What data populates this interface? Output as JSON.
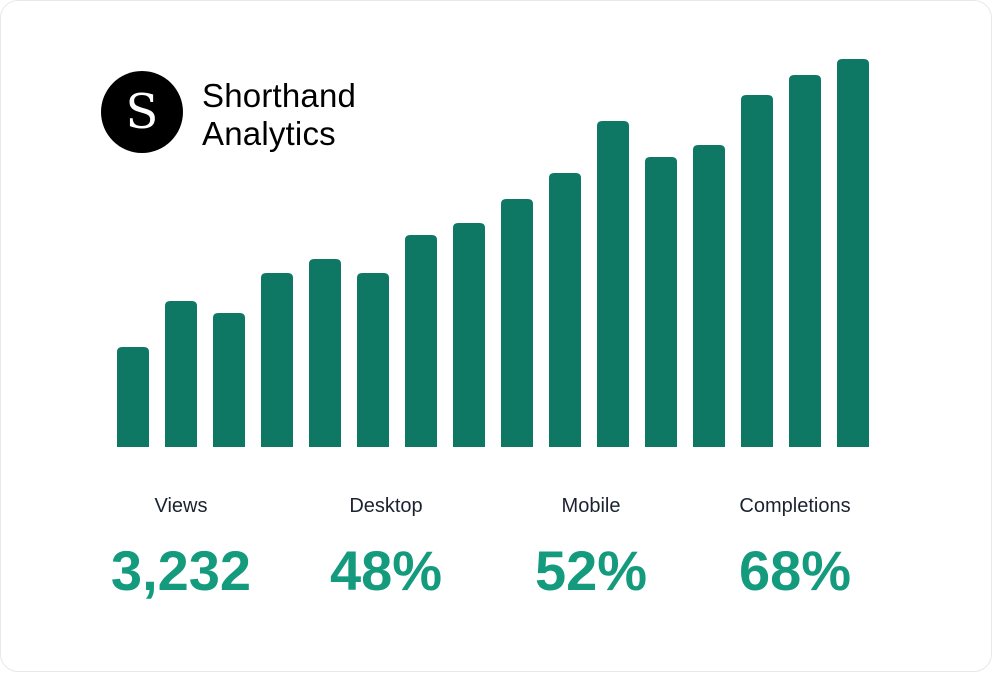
{
  "brand": {
    "logo_letter": "S",
    "line1": "Shorthand",
    "line2": "Analytics"
  },
  "chart_data": {
    "type": "bar",
    "values": [
      100,
      146,
      134,
      174,
      188,
      174,
      212,
      224,
      248,
      274,
      326,
      290,
      302,
      352,
      372,
      388
    ],
    "bar_color": "#0f7864",
    "grid": false,
    "axes": false
  },
  "stats": [
    {
      "label": "Views",
      "value": "3,232"
    },
    {
      "label": "Desktop",
      "value": "48%"
    },
    {
      "label": "Mobile",
      "value": "52%"
    },
    {
      "label": "Completions",
      "value": "68%"
    }
  ],
  "colors": {
    "bar": "#0f7864",
    "stat_value": "#149a7c",
    "label": "#1b2330"
  }
}
